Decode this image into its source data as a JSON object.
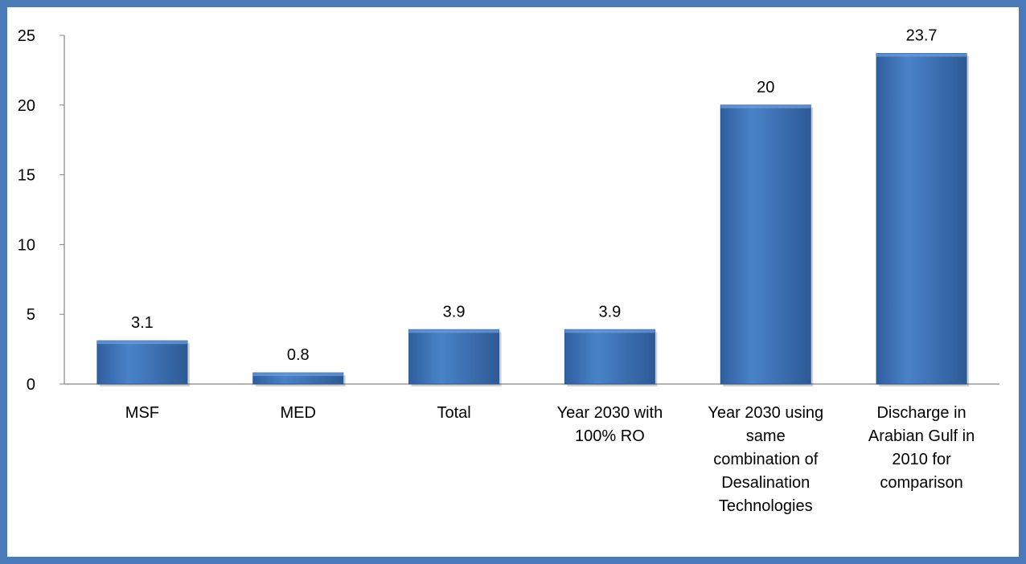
{
  "chart_data": {
    "type": "bar",
    "categories": [
      [
        "MSF"
      ],
      [
        "MED"
      ],
      [
        "Total"
      ],
      [
        "Year 2030 with",
        "100% RO"
      ],
      [
        "Year 2030 using",
        "same",
        "combination of",
        "Desalination",
        "Technologies"
      ],
      [
        "Discharge in",
        "Arabian Gulf in",
        "2010 for",
        "comparison"
      ]
    ],
    "values": [
      3.1,
      0.8,
      3.9,
      3.9,
      20,
      23.7
    ],
    "value_labels": [
      "3.1",
      "0.8",
      "3.9",
      "3.9",
      "20",
      "23.7"
    ],
    "title": "",
    "xlabel": "",
    "ylabel": "",
    "ylim": [
      0,
      25
    ],
    "yticks": [
      "0",
      "5",
      "10",
      "15",
      "20",
      "25"
    ],
    "grid": false,
    "legend": "none",
    "bar_color": "#3a6fb5",
    "bar_color_dark": "#2a5795",
    "frame_color": "#4a7ab8"
  }
}
